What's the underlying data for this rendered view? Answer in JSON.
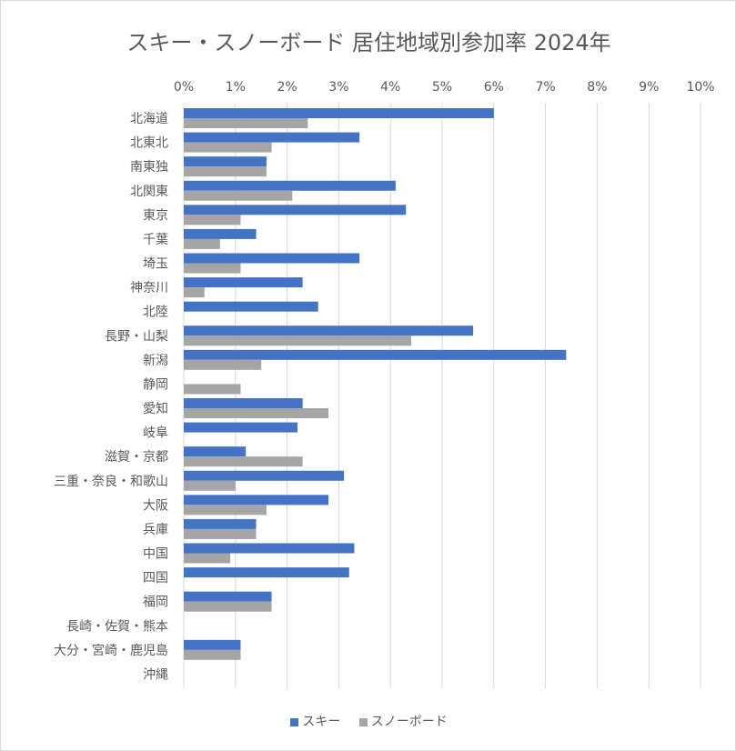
{
  "chart_data": {
    "type": "bar",
    "orientation": "horizontal",
    "title": "スキー・スノーボード 居住地域別参加率 2024年",
    "xlabel": "",
    "ylabel": "",
    "xlim": [
      0,
      10
    ],
    "x_ticks": [
      "0%",
      "1%",
      "2%",
      "3%",
      "4%",
      "5%",
      "6%",
      "7%",
      "8%",
      "9%",
      "10%"
    ],
    "grid": true,
    "legend_position": "bottom",
    "categories": [
      "北海道",
      "北東北",
      "南東独",
      "北関東",
      "東京",
      "千葉",
      "埼玉",
      "神奈川",
      "北陸",
      "長野・山梨",
      "新潟",
      "静岡",
      "愛知",
      "岐阜",
      "滋賀・京都",
      "三重・奈良・和歌山",
      "大阪",
      "兵庫",
      "中国",
      "四国",
      "福岡",
      "長崎・佐賀・熊本",
      "大分・宮崎・鹿児島",
      "沖縄"
    ],
    "series": [
      {
        "name": "スキー",
        "color": "#4472c4",
        "values": [
          6.0,
          3.4,
          1.6,
          4.1,
          4.3,
          1.4,
          3.4,
          2.3,
          2.6,
          5.6,
          7.4,
          0,
          2.3,
          2.2,
          1.2,
          3.1,
          2.8,
          1.4,
          3.3,
          3.2,
          1.7,
          0,
          1.1,
          0
        ]
      },
      {
        "name": "スノーボード",
        "color": "#a5a5a5",
        "values": [
          2.4,
          1.7,
          1.6,
          2.1,
          1.1,
          0.7,
          1.1,
          0.4,
          0,
          4.4,
          1.5,
          1.1,
          2.8,
          0,
          2.3,
          1.0,
          1.6,
          1.4,
          0.9,
          0,
          1.7,
          0,
          1.1,
          0
        ]
      }
    ]
  }
}
